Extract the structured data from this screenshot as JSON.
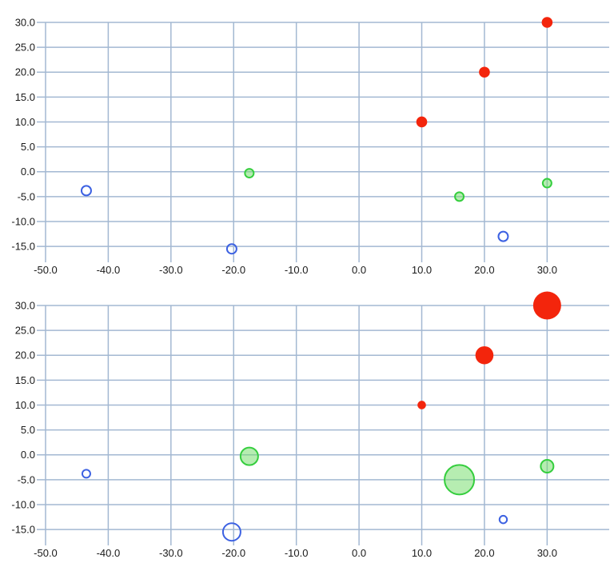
{
  "style": {
    "background": "#ffffff",
    "grid_color": "#a3b8d2",
    "grid_width": 1.5,
    "text_color": "#1a1a1a",
    "red": "#f3250c",
    "green_stroke": "#35ce3e",
    "green_fill": "#6edb64",
    "blue_stroke": "#3c61e2"
  },
  "chart_data": [
    {
      "id": "scatter-top",
      "type": "scatter",
      "title": "",
      "xlabel": "",
      "ylabel": "",
      "grid": true,
      "legend": false,
      "tick_decimals": 1,
      "x_ticks": [
        -50,
        -40,
        -30,
        -20,
        -10,
        0,
        10,
        20,
        30
      ],
      "y_ticks": [
        30,
        25,
        20,
        15,
        10,
        5,
        0,
        -5,
        -10,
        -15
      ],
      "xlim": [
        -51.4,
        39.9
      ],
      "ylim": [
        -18.2,
        30
      ],
      "series": [
        {
          "name": "red",
          "marker_fill": "#f3250c",
          "marker_fill_opacity": 1,
          "marker_stroke": "none",
          "marker_stroke_width": 0,
          "points": [
            {
              "x": 10,
              "y": 10,
              "r": 6.8
            },
            {
              "x": 20,
              "y": 20,
              "r": 6.8
            },
            {
              "x": 30,
              "y": 30,
              "r": 6.8
            }
          ]
        },
        {
          "name": "green",
          "marker_fill": "#6edb64",
          "marker_fill_opacity": 0.5,
          "marker_stroke": "#35ce3e",
          "marker_stroke_width": 2,
          "points": [
            {
              "x": -17.5,
              "y": -0.3,
              "r": 5.5
            },
            {
              "x": 16,
              "y": -5,
              "r": 5.5
            },
            {
              "x": 30,
              "y": -2.3,
              "r": 5.5
            }
          ]
        },
        {
          "name": "blue",
          "marker_fill": "none",
          "marker_fill_opacity": 1,
          "marker_stroke": "#3c61e2",
          "marker_stroke_width": 2,
          "points": [
            {
              "x": -43.5,
              "y": -3.8,
              "r": 6
            },
            {
              "x": -20.3,
              "y": -15.5,
              "r": 6
            },
            {
              "x": 23,
              "y": -13,
              "r": 6
            }
          ]
        }
      ]
    },
    {
      "id": "bubble-bottom",
      "type": "scatter",
      "title": "",
      "xlabel": "",
      "ylabel": "",
      "grid": true,
      "legend": false,
      "tick_decimals": 1,
      "x_ticks": [
        -50,
        -40,
        -30,
        -20,
        -10,
        0,
        10,
        20,
        30
      ],
      "y_ticks": [
        30,
        25,
        20,
        15,
        10,
        5,
        0,
        -5,
        -10,
        -15
      ],
      "xlim": [
        -51.4,
        39.9
      ],
      "ylim": [
        -18.2,
        30
      ],
      "series": [
        {
          "name": "red",
          "marker_fill": "#f3250c",
          "marker_fill_opacity": 1,
          "marker_stroke": "none",
          "marker_stroke_width": 0,
          "points": [
            {
              "x": 10,
              "y": 10,
              "r": 5.3
            },
            {
              "x": 20,
              "y": 20,
              "r": 11.3
            },
            {
              "x": 30,
              "y": 30,
              "r": 17.5
            }
          ]
        },
        {
          "name": "green",
          "marker_fill": "#6edb64",
          "marker_fill_opacity": 0.5,
          "marker_stroke": "#35ce3e",
          "marker_stroke_width": 2,
          "points": [
            {
              "x": -17.5,
              "y": -0.3,
              "r": 11
            },
            {
              "x": 16,
              "y": -5,
              "r": 18.5
            },
            {
              "x": 30,
              "y": -2.3,
              "r": 8
            }
          ]
        },
        {
          "name": "blue",
          "marker_fill": "none",
          "marker_fill_opacity": 1,
          "marker_stroke": "#3c61e2",
          "marker_stroke_width": 2,
          "points": [
            {
              "x": -43.5,
              "y": -3.8,
              "r": 5
            },
            {
              "x": -20.3,
              "y": -15.5,
              "r": 11
            },
            {
              "x": 23,
              "y": -13,
              "r": 4.7
            }
          ]
        }
      ]
    }
  ]
}
